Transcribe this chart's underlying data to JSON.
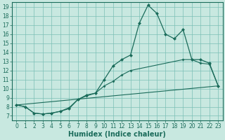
{
  "xlabel": "Humidex (Indice chaleur)",
  "bg_color": "#c8e8e0",
  "grid_color": "#7bbfb5",
  "line_color": "#1a6b5a",
  "xlim": [
    -0.5,
    23.5
  ],
  "ylim": [
    6.5,
    19.5
  ],
  "xticks": [
    0,
    1,
    2,
    3,
    4,
    5,
    6,
    7,
    8,
    9,
    10,
    11,
    12,
    13,
    14,
    15,
    16,
    17,
    18,
    19,
    20,
    21,
    22,
    23
  ],
  "yticks": [
    7,
    8,
    9,
    10,
    11,
    12,
    13,
    14,
    15,
    16,
    17,
    18,
    19
  ],
  "line1_x": [
    0,
    1,
    2,
    3,
    4,
    5,
    6,
    7,
    8,
    9,
    10,
    11,
    12,
    13,
    14,
    15,
    16,
    17,
    18,
    19,
    20,
    21,
    22,
    23
  ],
  "line1_y": [
    8.2,
    8.0,
    7.3,
    7.2,
    7.3,
    7.5,
    7.8,
    8.8,
    9.3,
    9.5,
    11.0,
    12.5,
    13.2,
    13.7,
    17.2,
    19.2,
    18.3,
    16.0,
    15.5,
    16.5,
    13.2,
    13.2,
    12.8,
    10.3
  ],
  "line2_x": [
    0,
    1,
    2,
    3,
    4,
    5,
    6,
    7,
    8,
    9,
    10,
    11,
    12,
    13,
    19,
    20,
    21,
    22,
    23
  ],
  "line2_y": [
    8.2,
    8.0,
    7.3,
    7.2,
    7.3,
    7.5,
    7.9,
    8.8,
    9.2,
    9.5,
    10.3,
    10.8,
    11.5,
    12.0,
    13.2,
    13.2,
    12.8,
    12.7,
    10.3
  ],
  "line3_x": [
    0,
    23
  ],
  "line3_y": [
    8.2,
    10.3
  ],
  "font_size_tick": 5.5,
  "font_size_xlabel": 7.0
}
